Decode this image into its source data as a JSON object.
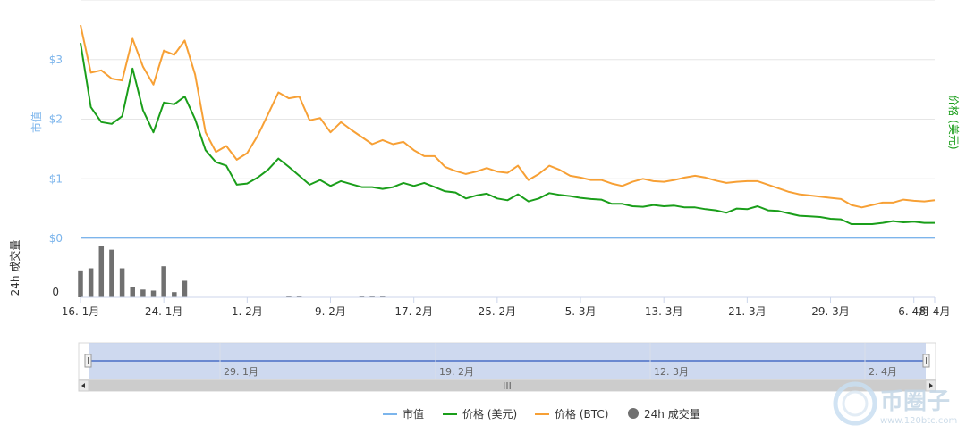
{
  "chart_data": {
    "type": "line",
    "x_start": "2018-01-16",
    "x_end": "2018-04-08",
    "x_ticks": [
      "16. 1月",
      "24. 1月",
      "1. 2月",
      "9. 2月",
      "17. 2月",
      "25. 2月",
      "5. 3月",
      "13. 3月",
      "21. 3月",
      "29. 3月",
      "6. 4月",
      "8. 4月"
    ],
    "ylim": [
      0,
      4
    ],
    "y_ticks": [
      "$0",
      "$1",
      "$2",
      "$3"
    ],
    "y_title_left": "市值",
    "y_title_right": "价格 (美元)",
    "volume_title": "24h 成交量",
    "volume_ticks": [
      "0"
    ],
    "grid": true,
    "legend_position": "bottom",
    "series": [
      {
        "name": "价格 (美元)",
        "color": "#1a9e1a",
        "values": [
          3.28,
          2.2,
          1.95,
          1.92,
          2.05,
          2.85,
          2.15,
          1.78,
          2.28,
          2.25,
          2.38,
          2.0,
          1.48,
          1.28,
          1.22,
          0.9,
          0.92,
          1.02,
          1.15,
          1.34,
          1.2,
          1.05,
          0.9,
          0.98,
          0.88,
          0.96,
          0.91,
          0.86,
          0.86,
          0.83,
          0.86,
          0.93,
          0.88,
          0.93,
          0.86,
          0.79,
          0.77,
          0.67,
          0.72,
          0.75,
          0.67,
          0.64,
          0.74,
          0.62,
          0.67,
          0.76,
          0.73,
          0.71,
          0.68,
          0.66,
          0.65,
          0.58,
          0.58,
          0.54,
          0.53,
          0.56,
          0.54,
          0.55,
          0.52,
          0.52,
          0.49,
          0.47,
          0.43,
          0.5,
          0.49,
          0.54,
          0.47,
          0.46,
          0.42,
          0.38,
          0.37,
          0.36,
          0.33,
          0.32,
          0.24,
          0.24,
          0.24,
          0.26,
          0.29,
          0.27,
          0.28,
          0.26,
          0.26
        ]
      },
      {
        "name": "价格 (BTC)",
        "color": "#f7a035",
        "values": [
          3.58,
          2.78,
          2.82,
          2.68,
          2.65,
          3.35,
          2.88,
          2.58,
          3.15,
          3.08,
          3.32,
          2.75,
          1.78,
          1.45,
          1.55,
          1.32,
          1.43,
          1.72,
          2.08,
          2.45,
          2.35,
          2.38,
          1.98,
          2.02,
          1.78,
          1.95,
          1.82,
          1.7,
          1.58,
          1.65,
          1.58,
          1.62,
          1.48,
          1.38,
          1.38,
          1.2,
          1.13,
          1.08,
          1.12,
          1.18,
          1.12,
          1.1,
          1.22,
          0.98,
          1.08,
          1.22,
          1.15,
          1.05,
          1.02,
          0.98,
          0.98,
          0.92,
          0.88,
          0.95,
          1.0,
          0.96,
          0.95,
          0.98,
          1.02,
          1.05,
          1.02,
          0.97,
          0.93,
          0.95,
          0.96,
          0.96,
          0.9,
          0.84,
          0.78,
          0.74,
          0.72,
          0.7,
          0.68,
          0.66,
          0.56,
          0.52,
          0.56,
          0.6,
          0.6,
          0.65,
          0.63,
          0.62,
          0.64
        ]
      },
      {
        "name": "市值",
        "color": "#7cb5ec",
        "values": [
          0.01,
          0.01,
          0.01,
          0.01,
          0.01,
          0.01,
          0.01,
          0.01,
          0.01,
          0.01,
          0.01,
          0.01,
          0.01,
          0.01,
          0.01,
          0.01,
          0.01,
          0.01,
          0.01,
          0.01,
          0.01,
          0.01,
          0.01,
          0.01,
          0.01,
          0.01,
          0.01,
          0.01,
          0.01,
          0.01,
          0.01,
          0.01,
          0.01,
          0.01,
          0.01,
          0.01,
          0.01,
          0.01,
          0.01,
          0.01,
          0.01,
          0.01,
          0.01,
          0.01,
          0.01,
          0.01,
          0.01,
          0.01,
          0.01,
          0.01,
          0.01,
          0.01,
          0.01,
          0.01,
          0.01,
          0.01,
          0.01,
          0.01,
          0.01,
          0.01,
          0.01,
          0.01,
          0.01,
          0.01,
          0.01,
          0.01,
          0.01,
          0.01,
          0.01,
          0.01,
          0.01,
          0.01,
          0.01,
          0.01,
          0.01,
          0.01,
          0.01,
          0.01,
          0.01,
          0.01,
          0.01,
          0.01,
          0.01
        ]
      },
      {
        "name": "24h 成交量",
        "color": "#707070",
        "type": "bar",
        "values": [
          0.52,
          0.56,
          1.0,
          0.92,
          0.56,
          0.19,
          0.15,
          0.13,
          0.6,
          0.1,
          0.32,
          0,
          0,
          0,
          0,
          0,
          0,
          0,
          0,
          0,
          0.01,
          0.01,
          0,
          0,
          0,
          0,
          0,
          0.01,
          0.01,
          0.01,
          0,
          0,
          0,
          0,
          0,
          0,
          0,
          0,
          0,
          0,
          0,
          0,
          0,
          0,
          0,
          0,
          0,
          0,
          0,
          0,
          0,
          0,
          0,
          0,
          0,
          0,
          0,
          0,
          0,
          0,
          0,
          0,
          0,
          0,
          0,
          0,
          0,
          0,
          0,
          0,
          0,
          0,
          0,
          0,
          0,
          0,
          0,
          0,
          0,
          0,
          0,
          0,
          0
        ]
      }
    ]
  },
  "navigator": {
    "ticks": [
      "29. 1月",
      "19. 2月",
      "12. 3月",
      "2. 4月"
    ],
    "scroll_label": "III"
  },
  "legend": [
    {
      "label": "市值",
      "color": "#7cb5ec",
      "symbol": "line"
    },
    {
      "label": "价格 (美元)",
      "color": "#1a9e1a",
      "symbol": "line"
    },
    {
      "label": "价格 (BTC)",
      "color": "#f7a035",
      "symbol": "line"
    },
    {
      "label": "24h 成交量",
      "color": "#707070",
      "symbol": "circle"
    }
  ],
  "watermark": {
    "brand": "币圈子",
    "url": "www.120btc.com"
  }
}
